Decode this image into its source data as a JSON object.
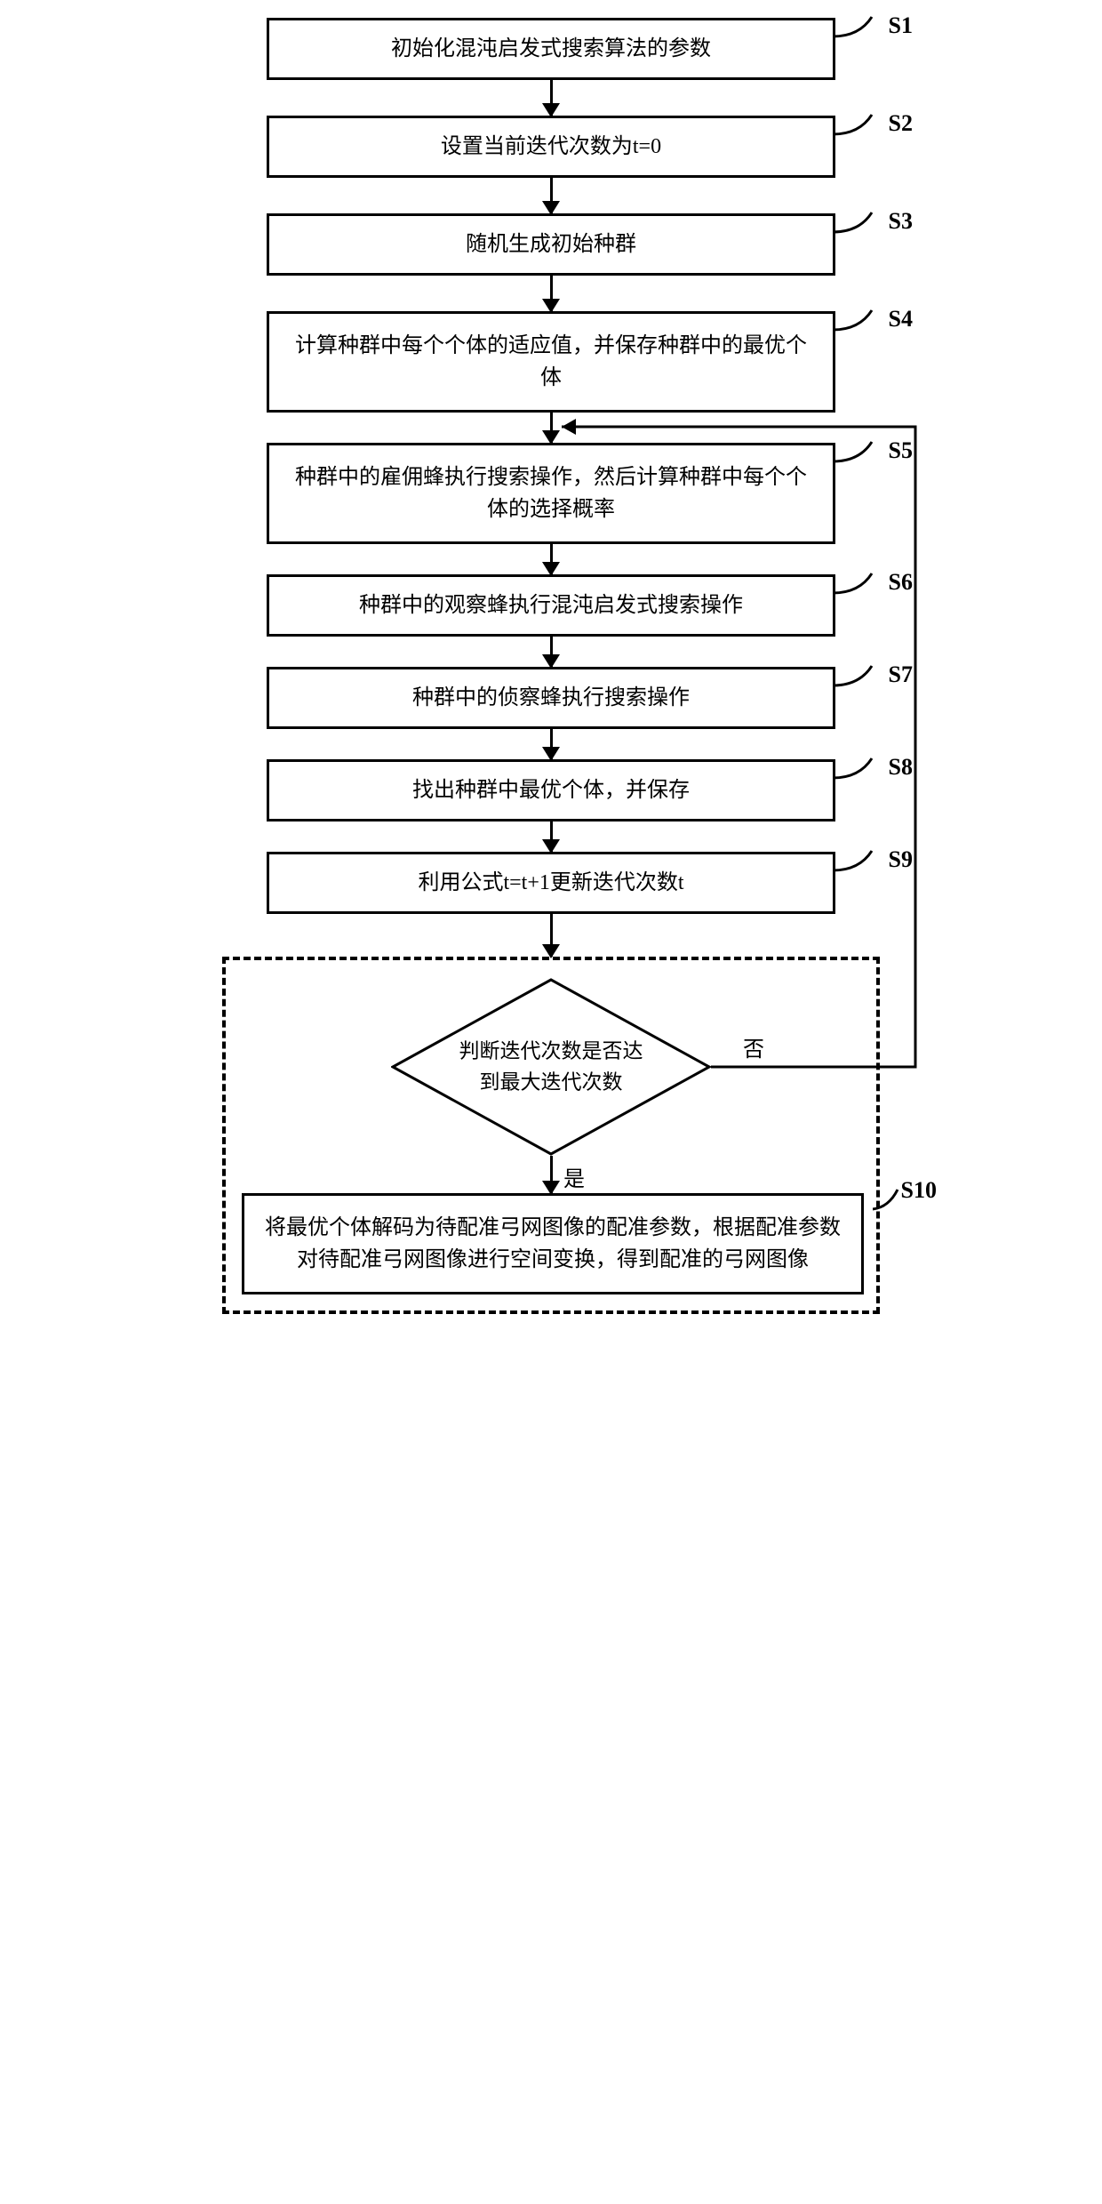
{
  "flowchart": {
    "type": "flowchart",
    "background_color": "#ffffff",
    "border_color": "#000000",
    "border_width": 3,
    "font_family": "SimSun",
    "node_fontsize": 24,
    "label_fontsize": 26,
    "arrow_color": "#000000",
    "steps": [
      {
        "id": "S1",
        "label": "S1",
        "text": "初始化混沌启发式搜索算法的参数"
      },
      {
        "id": "S2",
        "label": "S2",
        "text": "设置当前迭代次数为t=0"
      },
      {
        "id": "S3",
        "label": "S3",
        "text": "随机生成初始种群"
      },
      {
        "id": "S4",
        "label": "S4",
        "text": "计算种群中每个个体的适应值，并保存种群中的最优个体"
      },
      {
        "id": "S5",
        "label": "S5",
        "text": "种群中的雇佣蜂执行搜索操作，然后计算种群中每个个体的选择概率"
      },
      {
        "id": "S6",
        "label": "S6",
        "text": "种群中的观察蜂执行混沌启发式搜索操作"
      },
      {
        "id": "S7",
        "label": "S7",
        "text": "种群中的侦察蜂执行搜索操作"
      },
      {
        "id": "S8",
        "label": "S8",
        "text": "找出种群中最优个体，并保存"
      },
      {
        "id": "S9",
        "label": "S9",
        "text": "利用公式t=t+1更新迭代次数t"
      }
    ],
    "decision": {
      "id": "S10",
      "label": "S10",
      "text_line1": "判断迭代次数是否达",
      "text_line2": "到最大迭代次数",
      "yes_label": "是",
      "no_label": "否",
      "final_text": "将最优个体解码为待配准弓网图像的配准参数，根据配准参数对待配准弓网图像进行空间变换，得到配准的弓网图像"
    },
    "feedback_edge": {
      "from": "decision-no",
      "to": "S5"
    }
  }
}
